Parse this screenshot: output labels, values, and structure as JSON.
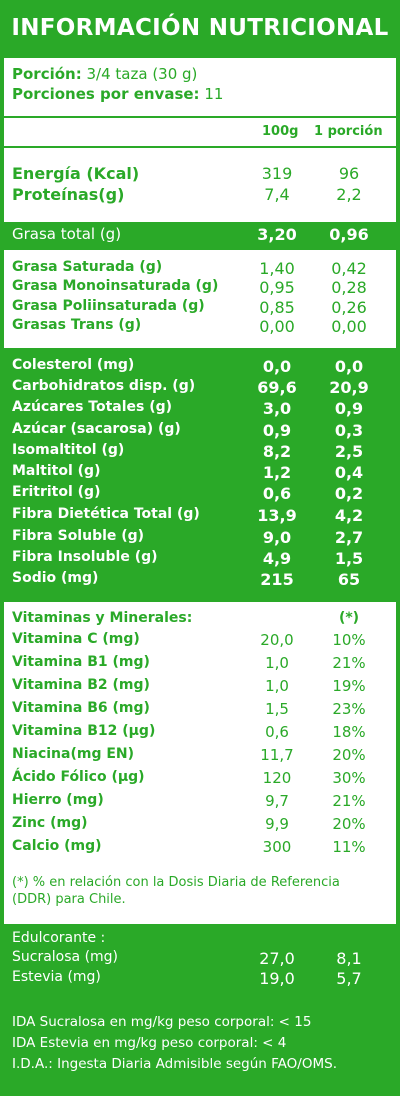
{
  "title": "INFORMACIÓN NUTRICIONAL",
  "serving": {
    "portion_label": "Porción:",
    "portion_value": "3/4 taza (30 g)",
    "servings_label": "Porciones por envase:",
    "servings_value": "11"
  },
  "columns": {
    "per100": "100g",
    "perPortion": "1 porción"
  },
  "energy_rows": [
    {
      "label": "Energía (Kcal)",
      "v100": "319",
      "vp": "96"
    },
    {
      "label": "Proteínas(g)",
      "v100": "7,4",
      "vp": "2,2"
    }
  ],
  "fat_total": {
    "label": "Grasa total (g)",
    "v100": "3,20",
    "vp": "0,96"
  },
  "fat_rows": [
    {
      "label": "Grasa Saturada (g)",
      "v100": "1,40",
      "vp": "0,42"
    },
    {
      "label": "Grasa Monoinsaturada (g)",
      "v100": "0,95",
      "vp": "0,28"
    },
    {
      "label": "Grasa Poliinsaturada (g)",
      "v100": "0,85",
      "vp": "0,26"
    },
    {
      "label": "Grasas Trans (g)",
      "v100": "0,00",
      "vp": "0,00"
    }
  ],
  "carb_rows": [
    {
      "label": "Colesterol (mg)",
      "v100": "0,0",
      "vp": "0,0"
    },
    {
      "label": "Carbohidratos disp. (g)",
      "v100": "69,6",
      "vp": "20,9"
    },
    {
      "label": "Azúcares Totales (g)",
      "v100": "3,0",
      "vp": "0,9"
    },
    {
      "label": "Azúcar (sacarosa) (g)",
      "v100": "0,9",
      "vp": "0,3"
    },
    {
      "label": "Isomaltitol (g)",
      "v100": "8,2",
      "vp": "2,5"
    },
    {
      "label": "Maltitol (g)",
      "v100": "1,2",
      "vp": "0,4"
    },
    {
      "label": "Eritritol (g)",
      "v100": "0,6",
      "vp": "0,2"
    },
    {
      "label": "Fibra Dietética Total (g)",
      "v100": "13,9",
      "vp": "4,2"
    },
    {
      "label": "Fibra Soluble (g)",
      "v100": "9,0",
      "vp": "2,7"
    },
    {
      "label": "Fibra Insoluble (g)",
      "v100": "4,9",
      "vp": "1,5"
    },
    {
      "label": "Sodio (mg)",
      "v100": "215",
      "vp": "65"
    }
  ],
  "vitamins": {
    "header": "Vitaminas y Minerales:",
    "header_mark": "(*)",
    "rows": [
      {
        "label": "Vitamina C (mg)",
        "v100": "20,0",
        "vp": "10%"
      },
      {
        "label": "Vitamina B1 (mg)",
        "v100": "1,0",
        "vp": "21%"
      },
      {
        "label": "Vitamina B2 (mg)",
        "v100": "1,0",
        "vp": "19%"
      },
      {
        "label": "Vitamina B6 (mg)",
        "v100": "1,5",
        "vp": "23%"
      },
      {
        "label": "Vitamina B12 (µg)",
        "v100": "0,6",
        "vp": "18%"
      },
      {
        "label": "Niacina(mg EN)",
        "v100": "11,7",
        "vp": "20%"
      },
      {
        "label": "Ácido Fólico (µg)",
        "v100": "120",
        "vp": "30%"
      },
      {
        "label": "Hierro (mg)",
        "v100": "9,7",
        "vp": "21%"
      },
      {
        "label": "Zinc (mg)",
        "v100": "9,9",
        "vp": "20%"
      },
      {
        "label": "Calcio (mg)",
        "v100": "300",
        "vp": "11%"
      }
    ],
    "note": "(*) % en relación con la Dosis Diaria de Referencia (DDR) para Chile."
  },
  "sweeteners": {
    "header": "Edulcorante :",
    "rows": [
      {
        "label": "Sucralosa (mg)",
        "v100": "27,0",
        "vp": "8,1"
      },
      {
        "label": "Estevia (mg)",
        "v100": "19,0",
        "vp": "5,7"
      }
    ]
  },
  "ida_lines": [
    "IDA Sucralosa en mg/kg peso corporal: < 15",
    "IDA Estevia en mg/kg peso corporal: < 4",
    "I.D.A.: Ingesta Diaria Admisible según FAO/OMS."
  ],
  "colors": {
    "green": "#2aa928",
    "white": "#ffffff"
  }
}
